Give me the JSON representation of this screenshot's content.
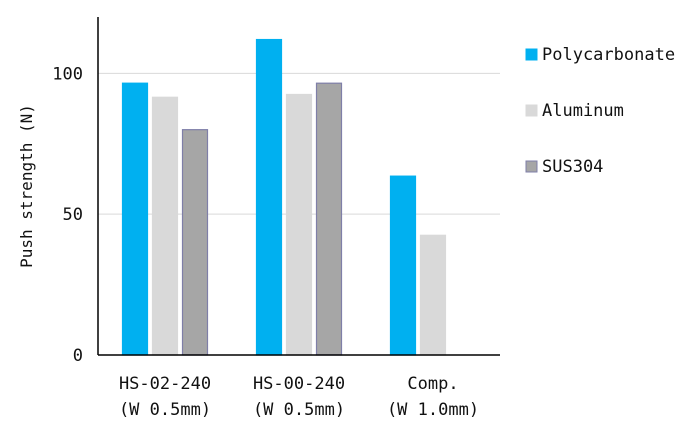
{
  "chart_data": {
    "type": "bar",
    "title": "",
    "xlabel": "",
    "ylabel": "Push strength (N)",
    "ylim": [
      0,
      120
    ],
    "yticks": [
      0,
      50,
      100
    ],
    "grid": true,
    "legend_position": "right",
    "categories": [
      [
        "HS-02-240",
        "(W 0.5mm)"
      ],
      [
        "HS-00-240",
        "(W 0.5mm)"
      ],
      [
        "Comp.",
        "(W 1.0mm)"
      ]
    ],
    "series": [
      {
        "name": "Polycarbonate",
        "color": "#00b0f0",
        "stroke": "#00b0f0",
        "values": [
          96.5,
          112,
          63.5
        ]
      },
      {
        "name": "Aluminum",
        "color": "#d9d9d9",
        "stroke": "#d9d9d9",
        "values": [
          91.5,
          92.5,
          42.5
        ]
      },
      {
        "name": "SUS304",
        "color": "#a6a6a6",
        "stroke": "#7f7fa8",
        "values": [
          80,
          96.5,
          null
        ]
      }
    ]
  }
}
